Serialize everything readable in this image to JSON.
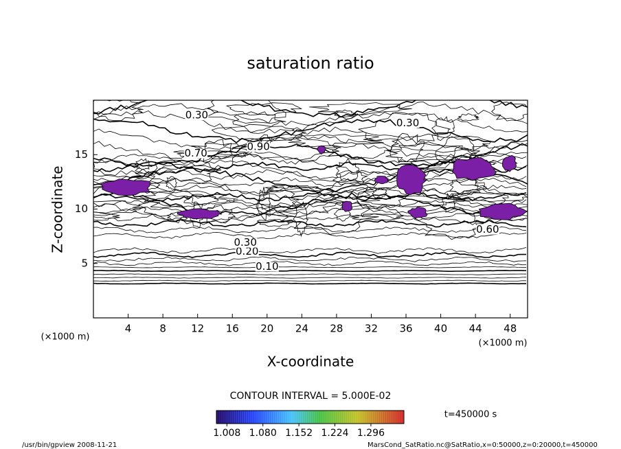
{
  "chart_data": {
    "type": "contour",
    "title": "saturation ratio",
    "x_label": "X-coordinate",
    "y_label": "Z-coordinate",
    "x_unit": "(×1000 m)",
    "y_unit": "(×1000 m)",
    "xlim": [
      0,
      50
    ],
    "xticks": [
      4,
      8,
      12,
      16,
      20,
      24,
      28,
      32,
      36,
      40,
      44,
      48
    ],
    "ylim": [
      0,
      20
    ],
    "yticks": [
      5,
      10,
      15
    ],
    "shade_color": "#7b1fa6",
    "contour_labels": [
      {
        "x": 20,
        "z": 4.7,
        "label": "0.10"
      },
      {
        "x": 17.7,
        "z": 6.1,
        "label": "0.20"
      },
      {
        "x": 17.5,
        "z": 6.9,
        "label": "0.30"
      },
      {
        "x": 11.9,
        "z": 18.6,
        "label": "0.30"
      },
      {
        "x": 36.2,
        "z": 17.9,
        "label": "0.30"
      },
      {
        "x": 19,
        "z": 15.7,
        "label": "0.90"
      },
      {
        "x": 11.8,
        "z": 15.1,
        "label": "0.70"
      },
      {
        "x": 45.4,
        "z": 8.1,
        "label": "0.60"
      }
    ],
    "contour_interval": "CONTOUR INTERVAL = 5.000E-02",
    "colorbar_lim": [
      0.987,
      1.362
    ],
    "colorbar_ticks": [
      {
        "value": 1.008,
        "label": "1.008"
      },
      {
        "value": 1.08,
        "label": "1.080"
      },
      {
        "value": 1.152,
        "label": "1.152"
      },
      {
        "value": 1.224,
        "label": "1.224"
      },
      {
        "value": 1.296,
        "label": "1.296"
      }
    ],
    "time_label": "t=450000 s",
    "footer_left": "/usr/bin/gpview   2008-11-21",
    "footer_right": "MarsCond_SatRatio.nc@SatRatio,x=0:50000,z=0:20000,t=450000"
  }
}
